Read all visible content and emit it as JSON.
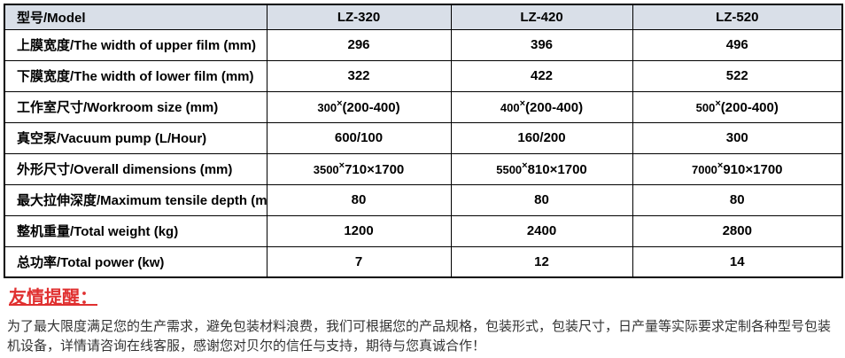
{
  "table": {
    "header": {
      "label": "型号/Model",
      "models": [
        "LZ-320",
        "LZ-420",
        "LZ-520"
      ]
    },
    "rows": [
      {
        "label": "上膜宽度/The width of upper film (mm)",
        "values": [
          "296",
          "396",
          "496"
        ]
      },
      {
        "label": "下膜宽度/The width of lower film (mm)",
        "values": [
          "322",
          "422",
          "522"
        ]
      },
      {
        "label": "工作室尺寸/Workroom size (mm)",
        "values": [
          [
            {
              "t": "300",
              "cls": "seg-sm"
            },
            {
              "t": "×",
              "cls": "seg-sup"
            },
            {
              "t": "(200-400)",
              "cls": "seg-lg"
            }
          ],
          [
            {
              "t": "400",
              "cls": "seg-sm"
            },
            {
              "t": "×",
              "cls": "seg-sup"
            },
            {
              "t": "(200-400)",
              "cls": "seg-lg"
            }
          ],
          [
            {
              "t": "500",
              "cls": "seg-sm"
            },
            {
              "t": "×",
              "cls": "seg-sup"
            },
            {
              "t": "(200-400)",
              "cls": "seg-lg"
            }
          ]
        ]
      },
      {
        "label": "真空泵/Vacuum pump (L/Hour)",
        "values": [
          "600/100",
          "160/200",
          "300"
        ]
      },
      {
        "label": "外形尺寸/Overall dimensions (mm)",
        "values": [
          [
            {
              "t": "3500",
              "cls": "seg-sm"
            },
            {
              "t": "×",
              "cls": "seg-sup"
            },
            {
              "t": "710×1700",
              "cls": "seg-lg"
            }
          ],
          [
            {
              "t": "5500",
              "cls": "seg-sm"
            },
            {
              "t": "×",
              "cls": "seg-sup"
            },
            {
              "t": "810×1700",
              "cls": "seg-lg"
            }
          ],
          [
            {
              "t": "7000",
              "cls": "seg-sm"
            },
            {
              "t": "×",
              "cls": "seg-sup"
            },
            {
              "t": "910×1700",
              "cls": "seg-lg"
            }
          ]
        ]
      },
      {
        "label": "最大拉伸深度/Maximum tensile depth (mm)",
        "values": [
          "80",
          "80",
          "80"
        ]
      },
      {
        "label": "整机重量/Total weight (kg)",
        "values": [
          "1200",
          "2400",
          "2800"
        ]
      },
      {
        "label": "总功率/Total power (kw)",
        "values": [
          "7",
          "12",
          "14"
        ]
      }
    ]
  },
  "reminder": {
    "title": "友情提醒：",
    "body": "为了最大限度满足您的生产需求，避免包装材料浪费，我们可根据您的产品规格，包装形式，包装尺寸，日产量等实际要求定制各种型号包装机设备，详情请咨询在线客服，感谢您对贝尔的信任与支持，期待与您真诚合作！"
  },
  "colors": {
    "header_bg": "#d9dfe8",
    "table_border": "#000000",
    "table_text": "#000000",
    "reminder_red": "#e03030",
    "body_text": "#333333"
  }
}
